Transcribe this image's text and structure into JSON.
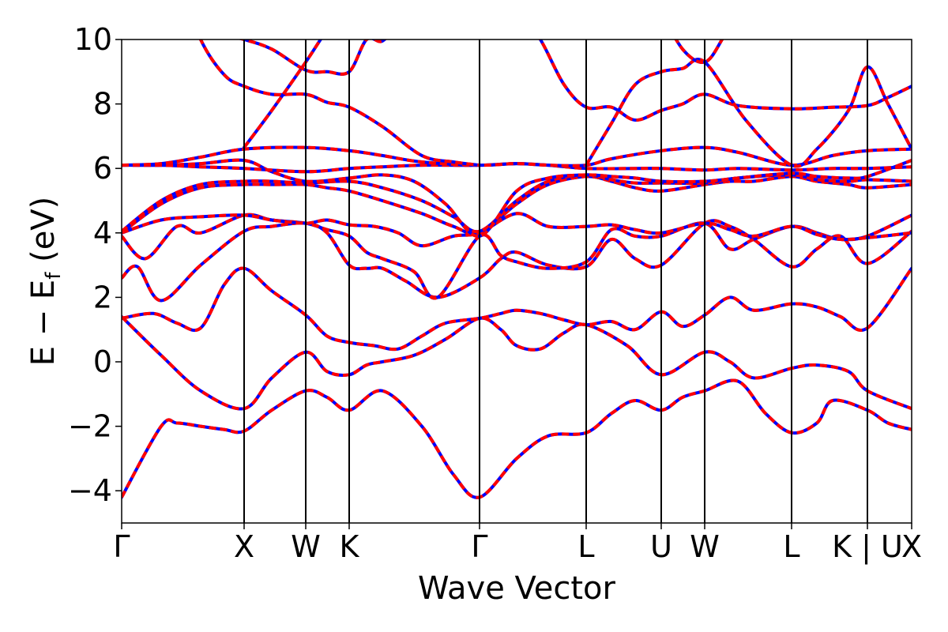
{
  "chart_data": {
    "type": "line",
    "xlabel": "Wave Vector",
    "ylabel": "E − E",
    "ylabel_sub": "f",
    "ylabel_unit": " (eV)",
    "ylim": [
      -5,
      10
    ],
    "y_ticks": [
      -4,
      -2,
      0,
      2,
      4,
      6,
      8,
      10
    ],
    "y_tick_labels": [
      "−4",
      "−2",
      "0",
      "2",
      "4",
      "6",
      "8",
      "10"
    ],
    "x_range": [
      0,
      1
    ],
    "kpoints": [
      {
        "label": "Γ",
        "x": 0.0
      },
      {
        "label": "X",
        "x": 0.155
      },
      {
        "label": "W",
        "x": 0.233
      },
      {
        "label": "K",
        "x": 0.288
      },
      {
        "label": "Γ",
        "x": 0.453
      },
      {
        "label": "L",
        "x": 0.588
      },
      {
        "label": "U",
        "x": 0.683
      },
      {
        "label": "W",
        "x": 0.738
      },
      {
        "label": "L",
        "x": 0.848
      },
      {
        "label": "K | U",
        "x": 0.944
      },
      {
        "label": "X",
        "x": 1.0
      }
    ],
    "series_colors": [
      "#ff0000",
      "#0000ff"
    ],
    "bands": [
      {
        "x": [
          0.0,
          0.05,
          0.07,
          0.1,
          0.13,
          0.155,
          0.19,
          0.233,
          0.26,
          0.288,
          0.33,
          0.38,
          0.42,
          0.453,
          0.5,
          0.54,
          0.588,
          0.62,
          0.65,
          0.683,
          0.71,
          0.738,
          0.78,
          0.815,
          0.848,
          0.88,
          0.9,
          0.944,
          0.97,
          1.0
        ],
        "y": [
          -4.2,
          -2.0,
          -1.9,
          -2.0,
          -2.1,
          -2.15,
          -1.5,
          -0.9,
          -1.1,
          -1.5,
          -0.9,
          -2.0,
          -3.5,
          -4.2,
          -3.0,
          -2.3,
          -2.2,
          -1.6,
          -1.2,
          -1.5,
          -1.1,
          -0.9,
          -0.6,
          -1.6,
          -2.2,
          -1.9,
          -1.2,
          -1.5,
          -1.9,
          -2.1
        ]
      },
      {
        "x": [
          0.0,
          0.05,
          0.1,
          0.155,
          0.19,
          0.233,
          0.26,
          0.288,
          0.31,
          0.33,
          0.37,
          0.41,
          0.453,
          0.48,
          0.5,
          0.53,
          0.56,
          0.588,
          0.64,
          0.683,
          0.738,
          0.77,
          0.8,
          0.848,
          0.88,
          0.92,
          0.944,
          1.0
        ],
        "y": [
          1.4,
          0.2,
          -0.9,
          -1.45,
          -0.5,
          0.3,
          -0.3,
          -0.4,
          -0.1,
          0.0,
          0.2,
          0.7,
          1.35,
          1.0,
          0.5,
          0.4,
          0.9,
          1.15,
          0.5,
          -0.4,
          0.3,
          0.0,
          -0.5,
          -0.2,
          -0.1,
          -0.3,
          -0.9,
          -1.45
        ]
      },
      {
        "x": [
          0.0,
          0.04,
          0.07,
          0.1,
          0.13,
          0.155,
          0.19,
          0.233,
          0.26,
          0.288,
          0.32,
          0.35,
          0.38,
          0.41,
          0.453,
          0.48,
          0.5,
          0.53,
          0.56,
          0.588,
          0.62,
          0.65,
          0.683,
          0.71,
          0.738,
          0.77,
          0.8,
          0.848,
          0.88,
          0.91,
          0.944,
          1.0
        ],
        "y": [
          1.35,
          1.5,
          1.2,
          1.05,
          2.4,
          2.9,
          2.2,
          1.45,
          0.8,
          0.6,
          0.5,
          0.4,
          0.8,
          1.2,
          1.35,
          1.5,
          1.6,
          1.5,
          1.3,
          1.15,
          1.25,
          1.0,
          1.55,
          1.1,
          1.45,
          2.0,
          1.6,
          1.8,
          1.7,
          1.4,
          1.05,
          2.9
        ]
      },
      {
        "x": [
          0.0,
          0.02,
          0.05,
          0.1,
          0.155,
          0.19,
          0.233,
          0.26,
          0.288,
          0.31,
          0.33,
          0.36,
          0.4,
          0.453,
          0.48,
          0.5,
          0.54,
          0.588,
          0.62,
          0.65,
          0.683,
          0.738,
          0.77,
          0.8,
          0.848,
          0.88,
          0.91,
          0.944,
          1.0
        ],
        "y": [
          2.6,
          2.95,
          1.9,
          3.0,
          4.05,
          4.2,
          4.3,
          4.0,
          3.0,
          2.9,
          2.9,
          2.5,
          2.0,
          2.6,
          3.2,
          3.4,
          3.0,
          2.95,
          3.8,
          3.2,
          3.0,
          4.3,
          4.2,
          3.8,
          2.95,
          3.5,
          3.9,
          3.05,
          4.05
        ]
      },
      {
        "x": [
          0.0,
          0.03,
          0.07,
          0.1,
          0.155,
          0.19,
          0.233,
          0.26,
          0.288,
          0.31,
          0.33,
          0.37,
          0.4,
          0.453,
          0.48,
          0.5,
          0.54,
          0.588,
          0.62,
          0.65,
          0.683,
          0.738,
          0.77,
          0.8,
          0.848,
          0.88,
          0.91,
          0.944,
          1.0
        ],
        "y": [
          3.9,
          3.2,
          4.2,
          4.0,
          4.55,
          4.4,
          4.3,
          4.1,
          3.9,
          3.4,
          3.2,
          2.8,
          2.0,
          3.9,
          3.3,
          3.1,
          2.9,
          3.1,
          4.1,
          3.9,
          3.9,
          4.3,
          3.5,
          3.8,
          4.2,
          4.0,
          3.8,
          3.9,
          4.55
        ]
      },
      {
        "x": [
          0.0,
          0.05,
          0.1,
          0.155,
          0.19,
          0.233,
          0.26,
          0.288,
          0.32,
          0.35,
          0.38,
          0.42,
          0.453,
          0.5,
          0.54,
          0.588,
          0.62,
          0.65,
          0.683,
          0.738,
          0.77,
          0.8,
          0.848,
          0.88,
          0.91,
          0.944,
          1.0
        ],
        "y": [
          4.0,
          4.4,
          4.5,
          4.55,
          4.4,
          4.3,
          4.4,
          4.25,
          4.2,
          4.0,
          3.6,
          3.9,
          4.0,
          4.6,
          4.2,
          4.2,
          4.25,
          4.1,
          4.0,
          4.3,
          4.1,
          3.9,
          4.2,
          3.95,
          3.8,
          3.85,
          4.0
        ]
      },
      {
        "x": [
          0.0,
          0.05,
          0.1,
          0.155,
          0.19,
          0.233,
          0.26,
          0.288,
          0.33,
          0.38,
          0.42,
          0.453,
          0.5,
          0.54,
          0.588,
          0.62,
          0.65,
          0.683,
          0.738,
          0.77,
          0.8,
          0.848,
          0.88,
          0.92,
          0.944,
          1.0
        ],
        "y": [
          4.0,
          4.9,
          5.4,
          5.5,
          5.5,
          5.5,
          5.4,
          5.3,
          5.0,
          4.6,
          4.2,
          4.0,
          4.9,
          5.5,
          5.75,
          5.6,
          5.4,
          5.3,
          5.5,
          5.6,
          5.6,
          5.75,
          5.6,
          5.5,
          5.4,
          5.5
        ]
      },
      {
        "x": [
          0.0,
          0.05,
          0.1,
          0.155,
          0.19,
          0.233,
          0.288,
          0.33,
          0.38,
          0.42,
          0.453,
          0.5,
          0.54,
          0.588,
          0.62,
          0.65,
          0.683,
          0.738,
          0.78,
          0.848,
          0.88,
          0.92,
          0.944,
          1.0
        ],
        "y": [
          4.05,
          5.0,
          5.5,
          5.6,
          5.6,
          5.55,
          5.6,
          5.4,
          5.0,
          4.5,
          4.05,
          5.0,
          5.6,
          5.8,
          5.65,
          5.55,
          5.55,
          5.55,
          5.7,
          5.8,
          5.65,
          5.6,
          5.65,
          5.6
        ]
      },
      {
        "x": [
          0.0,
          0.05,
          0.1,
          0.155,
          0.19,
          0.233,
          0.288,
          0.33,
          0.37,
          0.41,
          0.453,
          0.5,
          0.54,
          0.588,
          0.62,
          0.65,
          0.683,
          0.738,
          0.78,
          0.848,
          0.88,
          0.92,
          0.944,
          1.0
        ],
        "y": [
          6.1,
          6.1,
          6.15,
          6.25,
          5.9,
          5.6,
          5.7,
          5.8,
          5.6,
          4.9,
          3.9,
          5.3,
          5.7,
          5.8,
          5.75,
          5.7,
          5.6,
          5.6,
          5.7,
          5.85,
          5.75,
          5.7,
          5.75,
          6.25
        ]
      },
      {
        "x": [
          0.0,
          0.05,
          0.1,
          0.155,
          0.233,
          0.288,
          0.33,
          0.38,
          0.453,
          0.5,
          0.54,
          0.588,
          0.65,
          0.683,
          0.738,
          0.78,
          0.848,
          0.9,
          0.944,
          1.0
        ],
        "y": [
          6.1,
          6.1,
          6.05,
          6.0,
          5.9,
          6.0,
          6.05,
          6.1,
          6.1,
          6.15,
          6.1,
          6.0,
          6.0,
          6.0,
          5.95,
          6.0,
          5.95,
          6.0,
          6.0,
          6.05
        ]
      },
      {
        "x": [
          0.0,
          0.05,
          0.1,
          0.155,
          0.233,
          0.288,
          0.33,
          0.38,
          0.453,
          0.5,
          0.54,
          0.588,
          0.62,
          0.683,
          0.738,
          0.78,
          0.848,
          0.9,
          0.944,
          1.0
        ],
        "y": [
          6.1,
          6.15,
          6.35,
          6.6,
          6.65,
          6.55,
          6.4,
          6.2,
          6.1,
          6.15,
          6.1,
          6.1,
          6.3,
          6.55,
          6.65,
          6.5,
          6.1,
          6.4,
          6.55,
          6.6
        ]
      },
      {
        "x": [
          0.07,
          0.1,
          0.13,
          0.155,
          0.19,
          0.233,
          0.26,
          0.288,
          0.33,
          0.38,
          0.42,
          0.453
        ],
        "y": [
          12.0,
          10.0,
          8.9,
          8.55,
          8.3,
          8.3,
          8.05,
          7.9,
          7.3,
          6.4,
          6.2,
          6.1
        ]
      },
      {
        "x": [
          0.5,
          0.53,
          0.56,
          0.588,
          0.62,
          0.65,
          0.683,
          0.71,
          0.738,
          0.78,
          0.848,
          0.9,
          0.944,
          0.97,
          1.0
        ],
        "y": [
          11.0,
          10.0,
          8.6,
          7.9,
          7.9,
          7.5,
          7.8,
          8.0,
          8.3,
          7.95,
          7.85,
          7.9,
          7.95,
          8.2,
          8.55
        ]
      },
      {
        "x": [
          0.155,
          0.19,
          0.233,
          0.26,
          0.288,
          0.31,
          0.33
        ],
        "y": [
          6.65,
          7.8,
          9.3,
          10.3,
          11.2,
          12.0,
          13.0
        ]
      },
      {
        "x": [
          0.588,
          0.62,
          0.65,
          0.683,
          0.71,
          0.738,
          0.79,
          0.848,
          0.88,
          0.92,
          0.944,
          0.97,
          1.0
        ],
        "y": [
          6.1,
          7.4,
          8.6,
          9.0,
          9.1,
          9.3,
          7.5,
          6.1,
          6.6,
          7.8,
          9.15,
          8.0,
          6.6
        ]
      },
      {
        "x": [
          0.12,
          0.155,
          0.19,
          0.233,
          0.26,
          0.288,
          0.31,
          0.33,
          0.35,
          0.38
        ],
        "y": [
          10.2,
          10.0,
          9.7,
          9.05,
          9.0,
          9.0,
          10.0,
          9.95,
          10.5,
          11.0
        ]
      },
      {
        "x": [
          0.68,
          0.71,
          0.738,
          0.76,
          0.78
        ],
        "y": [
          11.0,
          9.7,
          9.3,
          10.0,
          11.0
        ]
      }
    ]
  }
}
